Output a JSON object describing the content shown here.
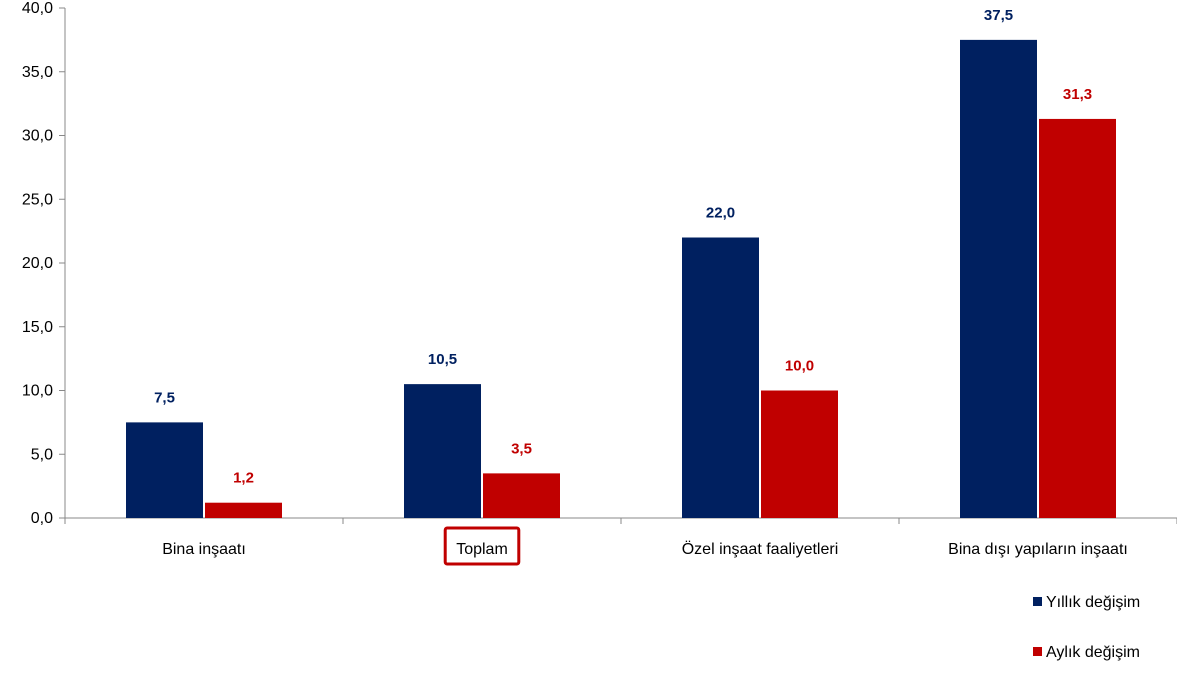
{
  "chart_data": {
    "type": "bar",
    "categories": [
      "Bina inşaatı",
      "Toplam",
      "Özel inşaat faaliyetleri",
      "Bina dışı yapıların inşaatı"
    ],
    "highlighted_category": "Toplam",
    "series": [
      {
        "name": "Yıllık değişim",
        "values": [
          7.5,
          10.5,
          22.0,
          37.5
        ],
        "labels": [
          "7,5",
          "10,5",
          "22,0",
          "37,5"
        ],
        "color": "#002060"
      },
      {
        "name": "Aylık değişim",
        "values": [
          1.2,
          3.5,
          10.0,
          31.3
        ],
        "labels": [
          "1,2",
          "3,5",
          "10,0",
          "31,3"
        ],
        "color": "#C00000"
      }
    ],
    "ylim": [
      0,
      40
    ],
    "yticks": [
      0,
      5,
      10,
      15,
      20,
      25,
      30,
      35,
      40
    ],
    "ytick_labels": [
      "0,0",
      "5,0",
      "10,0",
      "15,0",
      "20,0",
      "25,0",
      "30,0",
      "35,0",
      "40,0"
    ],
    "highlight_color": "#C00000",
    "legend_position": "bottom-right",
    "grid": false
  }
}
